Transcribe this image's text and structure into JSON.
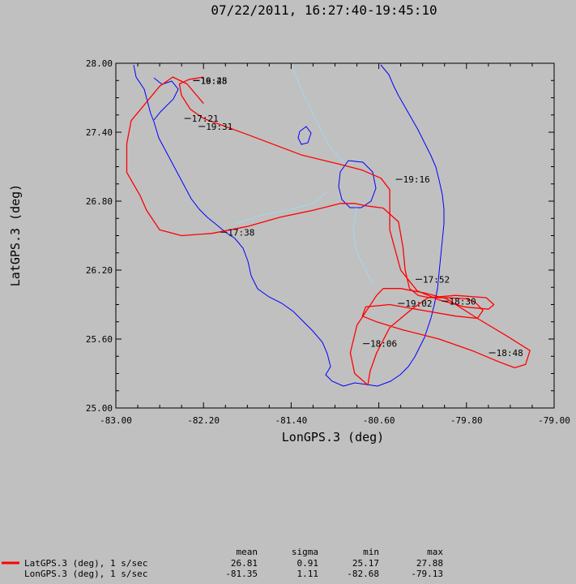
{
  "chart_data": {
    "type": "line",
    "title": "07/22/2011, 16:27:40-19:45:10",
    "xlabel": "LonGPS.3 (deg)",
    "ylabel": "LatGPS.3 (deg)",
    "xlim": [
      -83.0,
      -79.0
    ],
    "ylim": [
      25.0,
      28.0
    ],
    "xticks": [
      -83.0,
      -82.2,
      -81.4,
      -80.6,
      -79.8,
      -79.0
    ],
    "xtick_labels": [
      "-83.00",
      "-82.20",
      "-81.40",
      "-80.60",
      "-79.80",
      "-79.00"
    ],
    "yticks": [
      25.0,
      25.6,
      26.2,
      26.8,
      27.4,
      28.0
    ],
    "ytick_labels": [
      "25.00",
      "25.60",
      "26.20",
      "26.80",
      "27.40",
      "28.00"
    ],
    "grid": false,
    "colors": {
      "track": "#ff0000",
      "coast": "#0000ff",
      "rivers": "#a0d8f0",
      "background": "#c0c0c0"
    },
    "series": [
      {
        "name": "LatGPS.3 (deg), 1 s/sec",
        "x": [
          -82.2,
          -82.35,
          -82.48,
          -82.6,
          -82.86,
          -82.9,
          -82.9,
          -82.78,
          -82.72,
          -82.6,
          -82.4,
          -82.12,
          -81.8,
          -81.5,
          -81.2,
          -80.95,
          -80.82,
          -80.72,
          -80.56,
          -80.42,
          -80.38,
          -80.36,
          -80.32,
          -80.24,
          -80.14,
          -79.98,
          -79.8,
          -79.72,
          -79.65,
          -79.7,
          -79.9,
          -80.2,
          -80.5,
          -80.72,
          -80.75,
          -80.62,
          -80.38,
          -80.05,
          -79.75,
          -79.5,
          -79.36,
          -79.26,
          -79.22,
          -79.42,
          -79.7,
          -79.98,
          -80.18,
          -80.4,
          -80.56,
          -80.62,
          -80.8,
          -80.86,
          -80.82,
          -80.7,
          -80.68,
          -80.62,
          -80.5,
          -80.3,
          -80.15,
          -79.9,
          -79.62,
          -79.55,
          -79.6,
          -79.82,
          -80.05,
          -80.25,
          -80.4,
          -80.5,
          -80.5,
          -80.58,
          -80.75,
          -80.95,
          -81.3,
          -81.8,
          -82.2,
          -82.32,
          -82.4,
          -82.42,
          -82.33,
          -82.2
        ],
        "y": [
          27.65,
          27.82,
          27.88,
          27.8,
          27.5,
          27.3,
          27.05,
          26.85,
          26.72,
          26.55,
          26.5,
          26.52,
          26.58,
          26.66,
          26.72,
          26.78,
          26.78,
          26.76,
          26.74,
          26.62,
          26.4,
          26.2,
          26.04,
          25.98,
          25.96,
          25.96,
          25.95,
          25.92,
          25.85,
          25.78,
          25.8,
          25.85,
          25.9,
          25.88,
          25.8,
          25.75,
          25.68,
          25.6,
          25.5,
          25.4,
          25.35,
          25.38,
          25.5,
          25.62,
          25.78,
          25.95,
          26.0,
          26.04,
          26.04,
          25.98,
          25.72,
          25.48,
          25.3,
          25.2,
          25.32,
          25.48,
          25.7,
          25.86,
          25.96,
          25.98,
          25.96,
          25.9,
          25.86,
          25.88,
          25.94,
          26.02,
          26.2,
          26.55,
          26.9,
          27.0,
          27.07,
          27.12,
          27.2,
          27.38,
          27.52,
          27.6,
          27.72,
          27.82,
          27.86,
          27.88
        ]
      }
    ],
    "time_labels": [
      {
        "text": "17:21",
        "lon": -82.33,
        "lat": 27.52
      },
      {
        "text": "19:31",
        "lon": -82.2,
        "lat": 27.45
      },
      {
        "text": "19:16",
        "lon": -80.4,
        "lat": 26.99
      },
      {
        "text": "17:38",
        "lon": -82.0,
        "lat": 26.53
      },
      {
        "text": "17:52",
        "lon": -80.22,
        "lat": 26.12
      },
      {
        "text": "19:02",
        "lon": -80.38,
        "lat": 25.91
      },
      {
        "text": "18:06",
        "lon": -80.7,
        "lat": 25.56
      },
      {
        "text": "18:48",
        "lon": -79.55,
        "lat": 25.48
      },
      {
        "text": "18:30",
        "lon": -79.98,
        "lat": 25.93
      },
      {
        "text": "19:45",
        "lon": -82.25,
        "lat": 27.85
      },
      {
        "text": "16:28",
        "lon": -82.25,
        "lat": 27.85
      }
    ]
  },
  "stats": {
    "headers": [
      "mean",
      "sigma",
      "min",
      "max"
    ],
    "rows": [
      {
        "label": "LatGPS.3 (deg), 1 s/sec",
        "color": "#ff0000",
        "mean": "26.81",
        "sigma": "0.91",
        "min": "25.17",
        "max": "27.88"
      },
      {
        "label": "LonGPS.3 (deg), 1 s/sec",
        "color": "#c0c0c0",
        "mean": "-81.35",
        "sigma": "1.11",
        "min": "-82.68",
        "max": "-79.13"
      }
    ]
  }
}
